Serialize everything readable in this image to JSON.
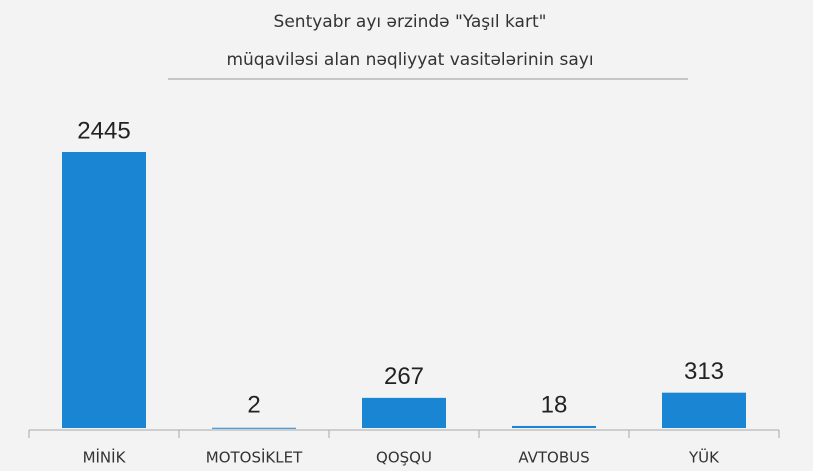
{
  "chart_data": {
    "type": "bar",
    "title": [
      "Sentyabr ayı ərzində \"Yaşıl kart\"",
      "müqaviləsi alan nəqliyyat vasitələrinin sayı"
    ],
    "categories": [
      "MİNİK",
      "MOTOSİKLET",
      "QOŞQU",
      "AVTOBUS",
      "YÜK"
    ],
    "values": [
      2445,
      2,
      267,
      18,
      313
    ],
    "color": "#1a86d3"
  }
}
